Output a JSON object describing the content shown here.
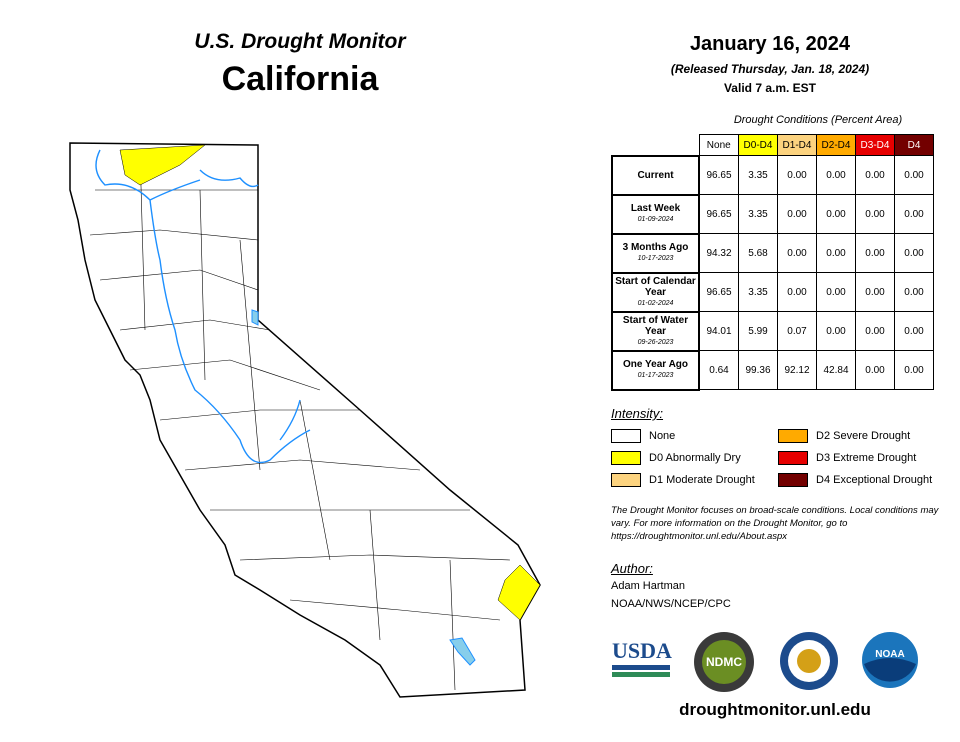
{
  "header": {
    "title": "U.S. Drought Monitor",
    "state": "California",
    "date": "January 16, 2024",
    "released": "(Released Thursday, Jan. 18, 2024)",
    "valid": "Valid 7 a.m. EST"
  },
  "table": {
    "caption": "Drought Conditions (Percent Area)",
    "columns": [
      {
        "label": "None",
        "color": "#ffffff",
        "text": "#000000"
      },
      {
        "label": "D0-D4",
        "color": "#ffff00",
        "text": "#000000"
      },
      {
        "label": "D1-D4",
        "color": "#fcd37f",
        "text": "#000000"
      },
      {
        "label": "D2-D4",
        "color": "#ffaa00",
        "text": "#000000"
      },
      {
        "label": "D3-D4",
        "color": "#e60000",
        "text": "#ffffff"
      },
      {
        "label": "D4",
        "color": "#730000",
        "text": "#ffffff"
      }
    ],
    "rows": [
      {
        "label": "Current",
        "values": [
          "96.65",
          "3.35",
          "0.00",
          "0.00",
          "0.00",
          "0.00"
        ]
      },
      {
        "label": "Last Week",
        "date": "01-09-2024",
        "values": [
          "96.65",
          "3.35",
          "0.00",
          "0.00",
          "0.00",
          "0.00"
        ]
      },
      {
        "label": "3 Months Ago",
        "date": "10-17-2023",
        "values": [
          "94.32",
          "5.68",
          "0.00",
          "0.00",
          "0.00",
          "0.00"
        ]
      },
      {
        "label": "Start of Calendar Year",
        "date": "01-02-2024",
        "values": [
          "96.65",
          "3.35",
          "0.00",
          "0.00",
          "0.00",
          "0.00"
        ]
      },
      {
        "label": "Start of Water Year",
        "date": "09-26-2023",
        "values": [
          "94.01",
          "5.99",
          "0.07",
          "0.00",
          "0.00",
          "0.00"
        ]
      },
      {
        "label": "One Year Ago",
        "date": "01-17-2023",
        "values": [
          "0.64",
          "99.36",
          "92.12",
          "42.84",
          "0.00",
          "0.00"
        ]
      }
    ]
  },
  "legend": {
    "title": "Intensity:",
    "items": [
      {
        "label": "None",
        "color": "#ffffff"
      },
      {
        "label": "D0 Abnormally Dry",
        "color": "#ffff00"
      },
      {
        "label": "D1 Moderate Drought",
        "color": "#fcd37f"
      },
      {
        "label": "D2 Severe Drought",
        "color": "#ffaa00"
      },
      {
        "label": "D3 Extreme Drought",
        "color": "#e60000"
      },
      {
        "label": "D4 Exceptional Drought",
        "color": "#730000"
      }
    ]
  },
  "note": "The Drought Monitor focuses on broad-scale conditions. Local conditions may vary. For more information on the Drought Monitor, go to https://droughtmonitor.unl.edu/About.aspx",
  "author": {
    "title": "Author:",
    "name": "Adam Hartman",
    "org": "NOAA/NWS/NCEP/CPC"
  },
  "logos": {
    "usda": "USDA",
    "ndmc": "NDMC",
    "noaa": "NOAA"
  },
  "url": "droughtmonitor.unl.edu"
}
